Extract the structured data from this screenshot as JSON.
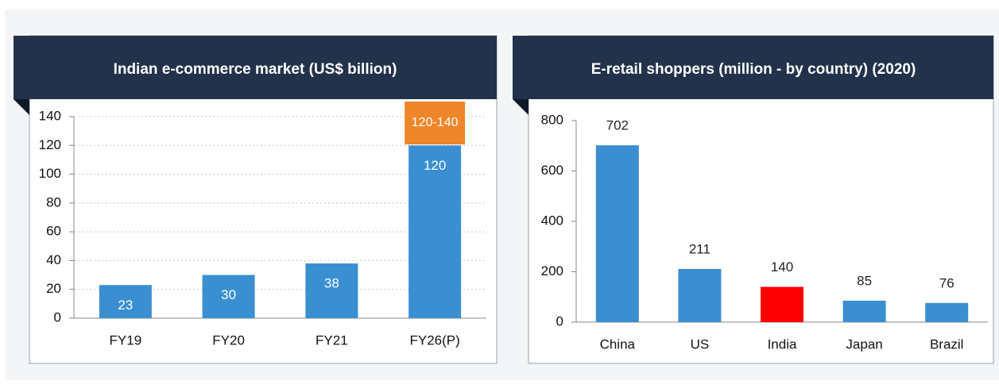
{
  "chart_data": [
    {
      "type": "bar",
      "title": "Indian e-commerce market (US$ billion)",
      "categories": [
        "FY19",
        "FY20",
        "FY21",
        "FY26(P)"
      ],
      "values": [
        23,
        30,
        38,
        120
      ],
      "color": "#3a8fd0",
      "ylim": [
        0,
        140
      ],
      "yticks": [
        0,
        20,
        40,
        60,
        80,
        100,
        120,
        140
      ],
      "grid": true,
      "annotation": {
        "text": "120-140",
        "color": "#f0862a"
      }
    },
    {
      "type": "bar",
      "title": "E-retail shoppers (million - by country) (2020)",
      "categories": [
        "China",
        "US",
        "India",
        "Japan",
        "Brazil"
      ],
      "values": [
        702,
        211,
        140,
        85,
        76
      ],
      "colors": [
        "#3a8fd0",
        "#3a8fd0",
        "#ff0000",
        "#3a8fd0",
        "#3a8fd0"
      ],
      "ylim": [
        0,
        800
      ],
      "yticks": [
        0,
        200,
        400,
        600,
        800
      ],
      "grid": false
    }
  ]
}
